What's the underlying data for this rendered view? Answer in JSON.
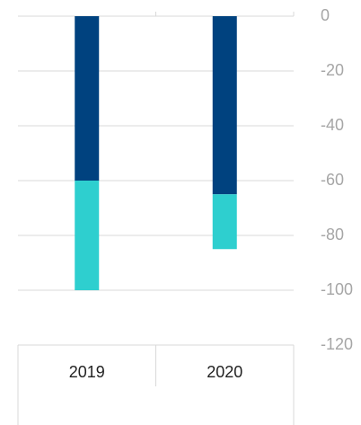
{
  "chart_data": {
    "type": "bar",
    "stacked": true,
    "categories": [
      "2019",
      "2020"
    ],
    "series": [
      {
        "color": "#00427f",
        "values": [
          -60,
          -65
        ]
      },
      {
        "color": "#2ecfcf",
        "values": [
          -40,
          -20
        ]
      }
    ],
    "ylim": [
      -120,
      0
    ],
    "yticks": [
      0,
      -20,
      -40,
      -60,
      -80,
      -100,
      -120
    ],
    "grid": true
  }
}
